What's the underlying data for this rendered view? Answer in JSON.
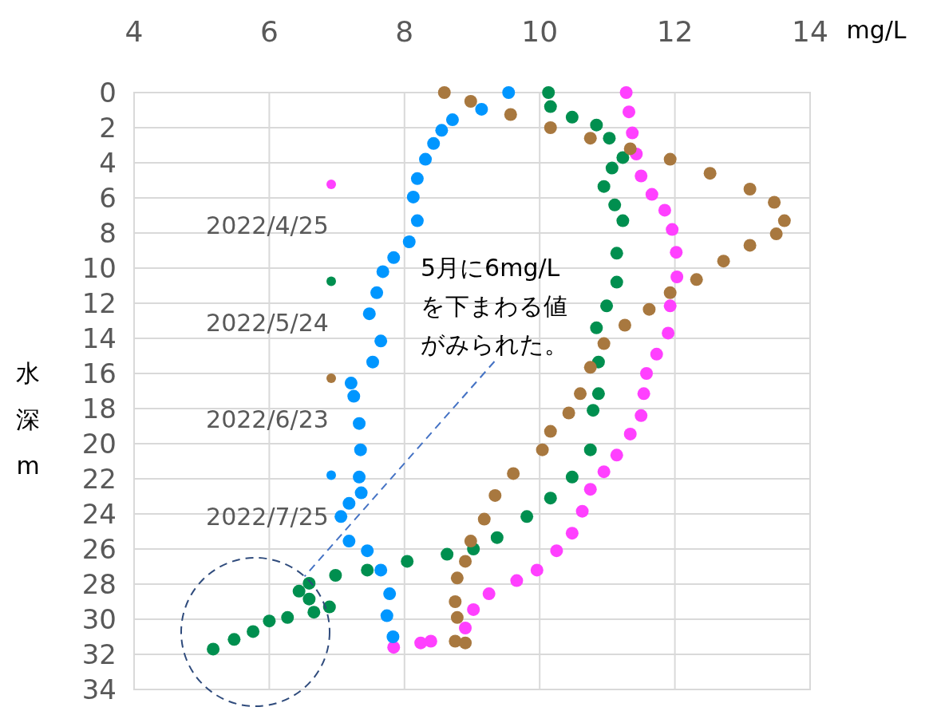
{
  "chart_data": {
    "type": "scatter",
    "xlabel": "mg/L",
    "ylabel": "水深m",
    "xlim": [
      4,
      14
    ],
    "xticks": [
      4,
      6,
      8,
      10,
      12,
      14
    ],
    "ylim": [
      34,
      0
    ],
    "yticks": [
      0,
      2,
      4,
      6,
      8,
      10,
      12,
      14,
      16,
      18,
      20,
      22,
      24,
      26,
      28,
      30,
      32,
      34
    ],
    "grid": true,
    "legend": "left",
    "marker": "circle",
    "annotations": [
      "5月に6mg/Lを下まわる値がみられた。"
    ],
    "series": [
      {
        "name": "2022/4/25",
        "color": "#ff40ff",
        "x": [
          11.28,
          11.32,
          11.37,
          11.43,
          11.5,
          11.66,
          11.85,
          11.96,
          12.02,
          12.03,
          11.93,
          11.9,
          11.73,
          11.58,
          11.54,
          11.5,
          11.34,
          11.14,
          10.95,
          10.75,
          10.63,
          10.48,
          10.25,
          9.96,
          9.66,
          9.25,
          9.02,
          8.9,
          null,
          8.39,
          8.24,
          7.84
        ],
        "values": [
          0,
          1.1,
          2.3,
          3.5,
          4.75,
          5.8,
          6.7,
          7.8,
          9.1,
          10.5,
          12.15,
          13.7,
          14.9,
          16.0,
          17.15,
          18.4,
          19.45,
          20.65,
          21.6,
          22.6,
          23.85,
          25.1,
          26.1,
          27.2,
          27.8,
          28.55,
          29.45,
          30.5,
          null,
          31.25,
          31.35,
          31.6
        ]
      },
      {
        "name": "2022/5/24",
        "color": "#008f4f",
        "x": [
          10.13,
          10.16,
          10.48,
          10.84,
          11.03,
          11.23,
          11.07,
          10.95,
          11.11,
          11.23,
          11.14,
          11.14,
          10.99,
          10.84,
          10.87,
          10.87,
          10.79,
          10.75,
          10.48,
          10.16,
          9.81,
          9.37,
          9.02,
          8.63,
          8.04,
          7.45,
          6.98,
          6.59,
          6.44,
          6.59,
          6.89,
          6.66,
          6.27,
          6.0,
          5.76,
          5.48,
          5.17
        ],
        "values": [
          0,
          0.8,
          1.4,
          1.85,
          2.6,
          3.7,
          4.3,
          5.35,
          6.4,
          7.3,
          9.15,
          10.8,
          12.15,
          13.4,
          15.35,
          17.15,
          18.1,
          20.35,
          21.9,
          23.1,
          24.15,
          25.35,
          26.0,
          26.3,
          26.7,
          27.2,
          27.5,
          27.95,
          28.4,
          28.85,
          29.3,
          29.6,
          29.9,
          30.1,
          30.7,
          31.15,
          31.7
        ]
      },
      {
        "name": "2022/6/23",
        "color": "#a8783f",
        "x": [
          8.59,
          8.98,
          9.57,
          10.16,
          10.75,
          11.34,
          11.93,
          12.52,
          13.11,
          13.47,
          13.62,
          13.5,
          13.11,
          12.72,
          12.32,
          11.93,
          11.62,
          11.26,
          10.95,
          10.75,
          10.6,
          10.43,
          10.16,
          10.04,
          9.61,
          9.34,
          9.18,
          8.98,
          8.9,
          8.78,
          8.75,
          8.78,
          8.75,
          8.9
        ],
        "values": [
          0,
          0.5,
          1.25,
          2.0,
          2.6,
          3.2,
          3.8,
          4.6,
          5.5,
          6.25,
          7.3,
          8.05,
          8.7,
          9.6,
          10.65,
          11.4,
          12.35,
          13.25,
          14.3,
          15.65,
          17.15,
          18.25,
          19.3,
          20.35,
          21.7,
          22.95,
          24.3,
          25.55,
          26.7,
          27.65,
          29.0,
          29.9,
          31.25,
          31.35
        ]
      },
      {
        "name": "2022/7/25",
        "color": "#0096ff",
        "x": [
          9.54,
          9.14,
          8.71,
          8.55,
          8.43,
          8.31,
          8.19,
          8.13,
          8.19,
          8.07,
          7.84,
          7.68,
          7.59,
          7.48,
          7.65,
          7.53,
          7.21,
          7.25,
          7.33,
          7.35,
          7.33,
          7.36,
          7.18,
          7.06,
          7.18,
          7.45,
          7.65,
          7.78,
          7.74,
          7.83
        ],
        "values": [
          0,
          0.95,
          1.55,
          2.15,
          2.9,
          3.8,
          4.9,
          5.95,
          7.3,
          8.5,
          9.4,
          10.2,
          11.4,
          12.6,
          14.15,
          15.35,
          16.55,
          17.3,
          18.85,
          20.35,
          21.9,
          22.8,
          23.4,
          24.15,
          25.55,
          26.1,
          27.2,
          28.55,
          29.8,
          31.0
        ]
      }
    ]
  }
}
